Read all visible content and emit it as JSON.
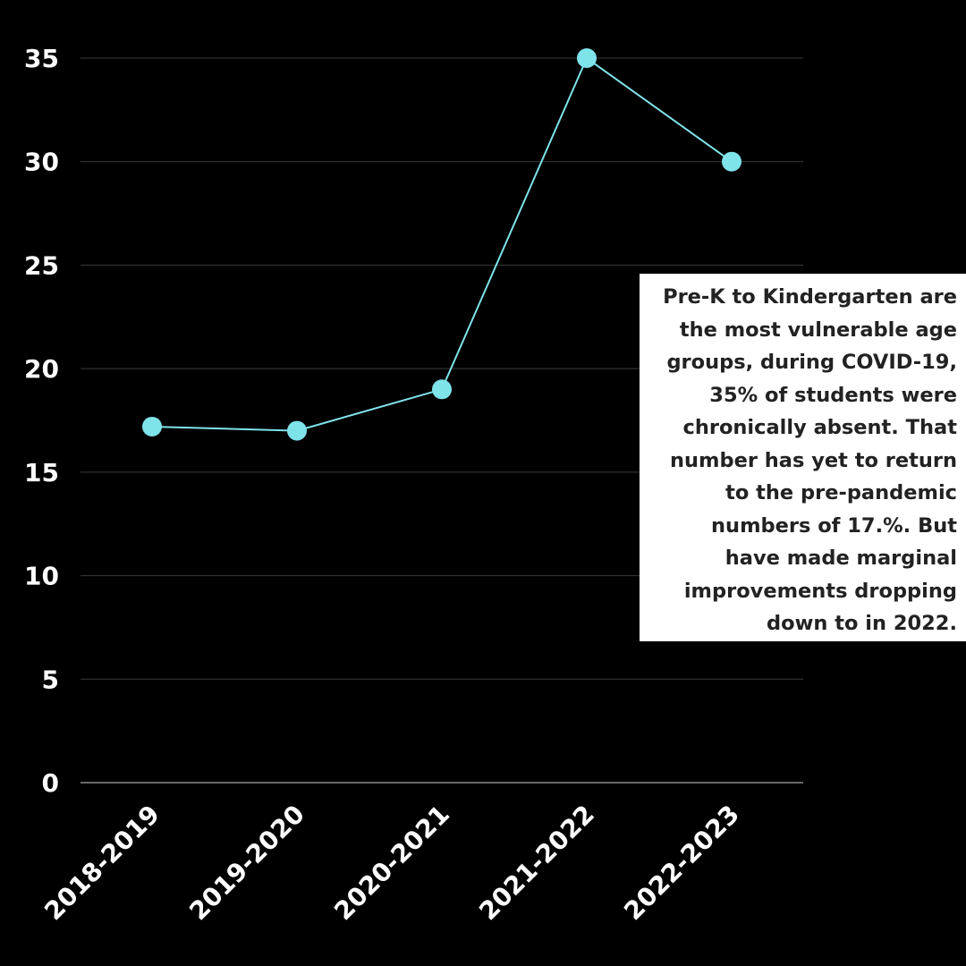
{
  "chart_data": {
    "type": "line",
    "categories": [
      "2018-2019",
      "2019-2020",
      "2020-2021",
      "2021-2022",
      "2022-2023"
    ],
    "series": [
      {
        "values": [
          17.2,
          17,
          19,
          35,
          30
        ],
        "color": "#7fe3ea"
      }
    ],
    "yticks": [
      "0",
      "5",
      "10",
      "15",
      "20",
      "25",
      "30",
      "35"
    ],
    "ylim": [
      0,
      35
    ],
    "grid": true,
    "background_color": "#000000",
    "gridline_color": "#3a3a3a",
    "annotation": {
      "text": "Pre-K to Kindergarten are the most vulnerable age groups, during COVID-19, 35% of students were chronically absent. That number has yet to return to the pre-pandemic numbers of 17.%. But have made marginal improvements dropping down to in 2022.",
      "placement": "right"
    }
  }
}
